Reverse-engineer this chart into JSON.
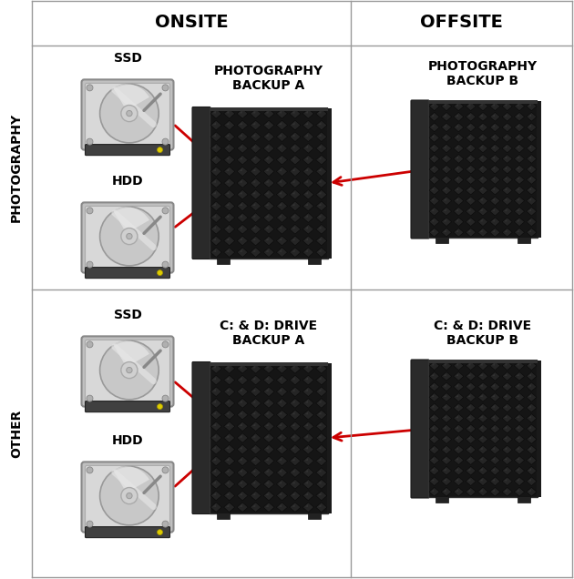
{
  "background_color": "#ffffff",
  "grid_color": "#999999",
  "arrow_color": "#cc0000",
  "text_color": "#000000",
  "header_col1": "ONSITE",
  "header_col2": "OFFSITE",
  "row_label1": "PHOTOGRAPHY",
  "row_label2": "OTHER",
  "row1_labels": {
    "ssd": "SSD",
    "hdd": "HDD",
    "backup_a": "PHOTOGRAPHY\nBACKUP A",
    "backup_b": "PHOTOGRAPHY\nBACKUP B"
  },
  "row2_labels": {
    "ssd": "SSD",
    "hdd": "HDD",
    "backup_a": "C: & D: DRIVE\nBACKUP A",
    "backup_b": "C: & D: DRIVE\nBACKUP B"
  },
  "figsize": [
    6.3,
    6.36
  ],
  "dpi": 100
}
